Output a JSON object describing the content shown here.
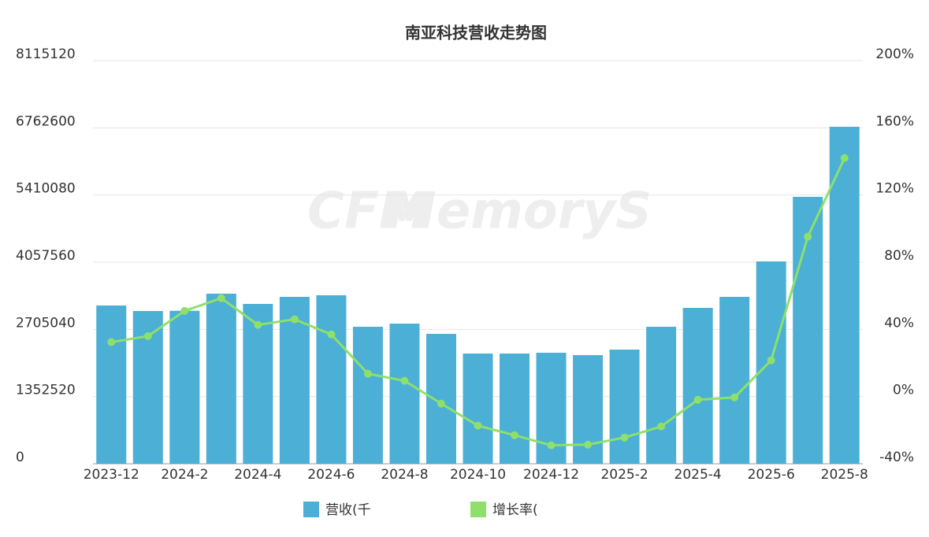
{
  "chart_data": {
    "type": "bar_line",
    "title": "南亚科技营收走势图",
    "watermark": [
      "CFM",
      "MemoryS"
    ],
    "categories": [
      "2023-12",
      null,
      "2024-2",
      null,
      "2024-4",
      null,
      "2024-6",
      null,
      "2024-8",
      null,
      "2024-10",
      null,
      "2024-12",
      null,
      "2025-2",
      null,
      "2025-4",
      null,
      "2025-6",
      null,
      "2025-8"
    ],
    "series": [
      {
        "name": "营收(千",
        "type": "bar",
        "color": "#4bafd6",
        "values": [
          3186000,
          3075000,
          3080000,
          3424000,
          3218000,
          3360000,
          3392000,
          2758000,
          2821000,
          2615000,
          2219000,
          2219000,
          2235000,
          2187000,
          2298000,
          2758000,
          3138000,
          3360000,
          4073000,
          5373000,
          6784000
        ]
      },
      {
        "name": "增长率(",
        "type": "line",
        "axis": "y2",
        "color": "#8ee06a",
        "values": [
          32.4,
          36,
          51,
          58.6,
          42.7,
          46,
          37,
          13.6,
          9.4,
          -4.2,
          -17.3,
          -23,
          -29,
          -28.6,
          -24.4,
          -17.8,
          -1.9,
          -0.5,
          21.6,
          95.2,
          142
        ]
      }
    ],
    "ylim": [
      0,
      8115120
    ],
    "yticks": [
      0,
      1352520,
      2705040,
      4057560,
      5410080,
      6762600,
      8115120
    ],
    "y2lim": [
      -40,
      200
    ],
    "y2ticks": [
      {
        "value": -40,
        "label": "-40%"
      },
      {
        "value": 0,
        "label": "0%"
      },
      {
        "value": 40,
        "label": "40%"
      },
      {
        "value": 80,
        "label": "80%"
      },
      {
        "value": 120,
        "label": "120%"
      },
      {
        "value": 160,
        "label": "160%"
      },
      {
        "value": 200,
        "label": "200%"
      }
    ],
    "grid": true
  }
}
